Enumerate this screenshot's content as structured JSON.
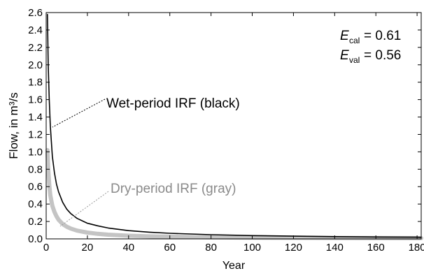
{
  "chart_data": {
    "type": "line",
    "xlabel": "Year",
    "ylabel": "Flow, in m³/s",
    "xlim": [
      0,
      182
    ],
    "ylim": [
      0,
      2.6
    ],
    "xticks": [
      "0",
      "20",
      "40",
      "60",
      "80",
      "100",
      "120",
      "140",
      "160",
      "180"
    ],
    "yticks": [
      "0.0",
      "0.2",
      "0.4",
      "0.6",
      "0.8",
      "1.0",
      "1.2",
      "1.4",
      "1.6",
      "1.8",
      "2.0",
      "2.2",
      "2.4",
      "2.6"
    ],
    "grid": false,
    "series": [
      {
        "name": "Wet-period IRF (black)",
        "color": "#000000",
        "x": [
          0.6,
          1,
          1.5,
          2,
          3,
          4,
          5,
          6,
          8,
          10,
          12,
          15,
          20,
          25,
          30,
          40,
          50,
          60,
          80,
          100,
          120,
          140,
          160,
          180,
          182
        ],
        "y": [
          2.58,
          2.0,
          1.6,
          1.3,
          0.95,
          0.76,
          0.63,
          0.54,
          0.42,
          0.34,
          0.29,
          0.235,
          0.18,
          0.15,
          0.125,
          0.095,
          0.077,
          0.064,
          0.048,
          0.038,
          0.031,
          0.026,
          0.022,
          0.019,
          0.018
        ]
      },
      {
        "name": "Dry-period IRF (gray)",
        "color": "#c4c4c4",
        "x": [
          0.6,
          1,
          1.5,
          2,
          3,
          4,
          5,
          6,
          8,
          10,
          12,
          15,
          20,
          25,
          30,
          40,
          50,
          60,
          80,
          100,
          120,
          140,
          160,
          180,
          182
        ],
        "y": [
          1.02,
          0.8,
          0.62,
          0.5,
          0.38,
          0.31,
          0.26,
          0.22,
          0.17,
          0.14,
          0.118,
          0.095,
          0.072,
          0.058,
          0.048,
          0.036,
          0.029,
          0.024,
          0.018,
          0.014,
          0.012,
          0.01,
          0.009,
          0.008,
          0.008
        ]
      }
    ],
    "annotations": {
      "wet_label": "Wet-period IRF (black)",
      "dry_label": "Dry-period IRF (gray)",
      "ecal_symbol": "E",
      "ecal_sub": "cal",
      "ecal_value": "= 0.61",
      "eval_symbol": "E",
      "eval_sub": "val",
      "eval_value": "= 0.56"
    }
  }
}
